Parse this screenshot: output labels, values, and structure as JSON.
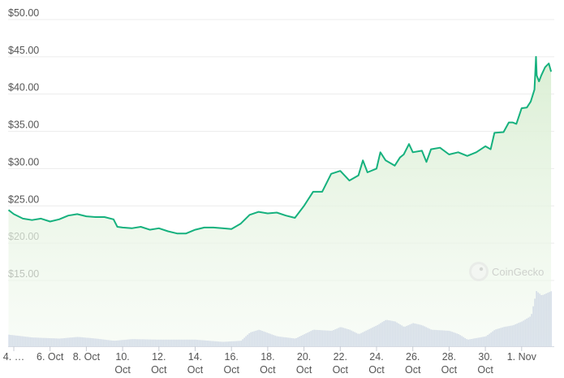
{
  "chart_data": {
    "type": "area",
    "title": "",
    "xlabel": "",
    "ylabel": "",
    "ylim": [
      15,
      50
    ],
    "grid": true,
    "y_ticks": [
      "$15.00",
      "$20.00",
      "$25.00",
      "$30.00",
      "$35.00",
      "$40.00",
      "$45.00",
      "$50.00"
    ],
    "y_tick_values": [
      15,
      20,
      25,
      30,
      35,
      40,
      45,
      50
    ],
    "x_ticks": [
      {
        "day": "Oct 4",
        "lines": [
          "4. …"
        ]
      },
      {
        "day": "Oct 6",
        "lines": [
          "6. Oct"
        ]
      },
      {
        "day": "Oct 8",
        "lines": [
          "8. Oct"
        ]
      },
      {
        "day": "Oct 10",
        "lines": [
          "10.",
          "Oct"
        ]
      },
      {
        "day": "Oct 12",
        "lines": [
          "12.",
          "Oct"
        ]
      },
      {
        "day": "Oct 14",
        "lines": [
          "14.",
          "Oct"
        ]
      },
      {
        "day": "Oct 16",
        "lines": [
          "16.",
          "Oct"
        ]
      },
      {
        "day": "Oct 18",
        "lines": [
          "18.",
          "Oct"
        ]
      },
      {
        "day": "Oct 20",
        "lines": [
          "20.",
          "Oct"
        ]
      },
      {
        "day": "Oct 22",
        "lines": [
          "22.",
          "Oct"
        ]
      },
      {
        "day": "Oct 24",
        "lines": [
          "24.",
          "Oct"
        ]
      },
      {
        "day": "Oct 26",
        "lines": [
          "26.",
          "Oct"
        ]
      },
      {
        "day": "Oct 28",
        "lines": [
          "28.",
          "Oct"
        ]
      },
      {
        "day": "Oct 30",
        "lines": [
          "30.",
          "Oct"
        ]
      },
      {
        "day": "Nov 1",
        "lines": [
          "1. Nov"
        ]
      }
    ],
    "price_series": [
      [
        "Oct 3 17:00",
        24.45
      ],
      [
        "Oct 4 00:00",
        23.9
      ],
      [
        "Oct 4 12:00",
        23.3
      ],
      [
        "Oct 5 00:00",
        23.1
      ],
      [
        "Oct 5 12:00",
        23.3
      ],
      [
        "Oct 6 00:00",
        22.9
      ],
      [
        "Oct 6 12:00",
        23.2
      ],
      [
        "Oct 7 00:00",
        23.7
      ],
      [
        "Oct 7 12:00",
        23.9
      ],
      [
        "Oct 8 00:00",
        23.6
      ],
      [
        "Oct 8 12:00",
        23.5
      ],
      [
        "Oct 9 00:00",
        23.5
      ],
      [
        "Oct 9 12:00",
        23.2
      ],
      [
        "Oct 9 17:00",
        22.2
      ],
      [
        "Oct 10 00:00",
        22.1
      ],
      [
        "Oct 10 12:00",
        22.0
      ],
      [
        "Oct 11 00:00",
        22.2
      ],
      [
        "Oct 11 12:00",
        21.8
      ],
      [
        "Oct 12 00:00",
        22.0
      ],
      [
        "Oct 12 12:00",
        21.6
      ],
      [
        "Oct 13 00:00",
        21.3
      ],
      [
        "Oct 13 12:00",
        21.3
      ],
      [
        "Oct 14 00:00",
        21.8
      ],
      [
        "Oct 14 12:00",
        22.1
      ],
      [
        "Oct 15 00:00",
        22.1
      ],
      [
        "Oct 15 12:00",
        22.0
      ],
      [
        "Oct 16 00:00",
        21.9
      ],
      [
        "Oct 16 12:00",
        22.6
      ],
      [
        "Oct 17 00:00",
        23.8
      ],
      [
        "Oct 17 12:00",
        24.2
      ],
      [
        "Oct 18 00:00",
        24.0
      ],
      [
        "Oct 18 12:00",
        24.1
      ],
      [
        "Oct 19 00:00",
        23.7
      ],
      [
        "Oct 19 12:00",
        23.4
      ],
      [
        "Oct 20 00:00",
        25.0
      ],
      [
        "Oct 20 12:00",
        26.9
      ],
      [
        "Oct 21 00:00",
        26.9
      ],
      [
        "Oct 21 12:00",
        29.3
      ],
      [
        "Oct 22 00:00",
        29.7
      ],
      [
        "Oct 22 12:00",
        28.4
      ],
      [
        "Oct 23 00:00",
        29.1
      ],
      [
        "Oct 23 06:00",
        31.1
      ],
      [
        "Oct 23 12:00",
        29.5
      ],
      [
        "Oct 24 00:00",
        30.0
      ],
      [
        "Oct 24 05:00",
        32.2
      ],
      [
        "Oct 24 12:00",
        31.1
      ],
      [
        "Oct 25 00:00",
        30.4
      ],
      [
        "Oct 25 07:00",
        31.5
      ],
      [
        "Oct 25 12:00",
        31.9
      ],
      [
        "Oct 25 19:00",
        33.3
      ],
      [
        "Oct 26 00:00",
        32.2
      ],
      [
        "Oct 26 12:00",
        32.4
      ],
      [
        "Oct 26 18:00",
        30.9
      ],
      [
        "Oct 27 00:00",
        32.6
      ],
      [
        "Oct 27 12:00",
        32.8
      ],
      [
        "Oct 28 00:00",
        31.9
      ],
      [
        "Oct 28 12:00",
        32.2
      ],
      [
        "Oct 29 00:00",
        31.7
      ],
      [
        "Oct 29 12:00",
        32.2
      ],
      [
        "Oct 30 00:00",
        33.0
      ],
      [
        "Oct 30 07:00",
        32.6
      ],
      [
        "Oct 30 12:00",
        34.8
      ],
      [
        "Oct 31 00:00",
        34.9
      ],
      [
        "Oct 31 07:00",
        36.2
      ],
      [
        "Oct 31 12:00",
        36.2
      ],
      [
        "Oct 31 17:00",
        36.0
      ],
      [
        "Nov 1 00:00",
        38.1
      ],
      [
        "Nov 1 07:00",
        38.2
      ],
      [
        "Nov 1 12:00",
        39.0
      ],
      [
        "Nov 1 17:00",
        40.6
      ],
      [
        "Nov 1 19:00",
        45.0
      ],
      [
        "Nov 1 20:00",
        42.5
      ],
      [
        "Nov 1 23:00",
        41.7
      ],
      [
        "Nov 2 02:00",
        42.5
      ],
      [
        "Nov 2 07:00",
        43.6
      ],
      [
        "Nov 2 12:00",
        44.1
      ],
      [
        "Nov 2 15:00",
        43.0
      ]
    ],
    "volume_relative": [
      [
        "Oct 3 17:00",
        0.21
      ],
      [
        "Oct 5 00:00",
        0.16
      ],
      [
        "Oct 6 12:00",
        0.14
      ],
      [
        "Oct 7 12:00",
        0.17
      ],
      [
        "Oct 8 12:00",
        0.14
      ],
      [
        "Oct 9 12:00",
        0.1
      ],
      [
        "Oct 10 12:00",
        0.13
      ],
      [
        "Oct 12 00:00",
        0.12
      ],
      [
        "Oct 14 00:00",
        0.12
      ],
      [
        "Oct 15 12:00",
        0.08
      ],
      [
        "Oct 16 12:00",
        0.1
      ],
      [
        "Oct 17 00:00",
        0.25
      ],
      [
        "Oct 17 12:00",
        0.3
      ],
      [
        "Oct 18 12:00",
        0.18
      ],
      [
        "Oct 19 12:00",
        0.14
      ],
      [
        "Oct 20 00:00",
        0.22
      ],
      [
        "Oct 20 12:00",
        0.3
      ],
      [
        "Oct 21 12:00",
        0.28
      ],
      [
        "Oct 22 00:00",
        0.35
      ],
      [
        "Oct 22 12:00",
        0.3
      ],
      [
        "Oct 23 00:00",
        0.22
      ],
      [
        "Oct 23 12:00",
        0.3
      ],
      [
        "Oct 24 00:00",
        0.38
      ],
      [
        "Oct 24 12:00",
        0.48
      ],
      [
        "Oct 25 00:00",
        0.45
      ],
      [
        "Oct 25 12:00",
        0.35
      ],
      [
        "Oct 26 00:00",
        0.42
      ],
      [
        "Oct 26 12:00",
        0.38
      ],
      [
        "Oct 27 00:00",
        0.3
      ],
      [
        "Oct 28 00:00",
        0.28
      ],
      [
        "Oct 28 12:00",
        0.22
      ],
      [
        "Oct 29 00:00",
        0.12
      ],
      [
        "Oct 29 12:00",
        0.15
      ],
      [
        "Oct 30 00:00",
        0.18
      ],
      [
        "Oct 30 12:00",
        0.3
      ],
      [
        "Oct 31 00:00",
        0.35
      ],
      [
        "Oct 31 12:00",
        0.38
      ],
      [
        "Nov 1 00:00",
        0.45
      ],
      [
        "Nov 1 12:00",
        0.55
      ],
      [
        "Nov 1 19:00",
        1.0
      ],
      [
        "Nov 2 02:00",
        0.92
      ],
      [
        "Nov 2 15:00",
        1.0
      ]
    ],
    "colors": {
      "line": "#16b17e",
      "area_top": "#dcefd6",
      "volume": "#c9d3e3",
      "grid": "#ececec"
    }
  },
  "watermark": {
    "text": "CoinGecko",
    "icon": "gecko-logo-icon"
  }
}
